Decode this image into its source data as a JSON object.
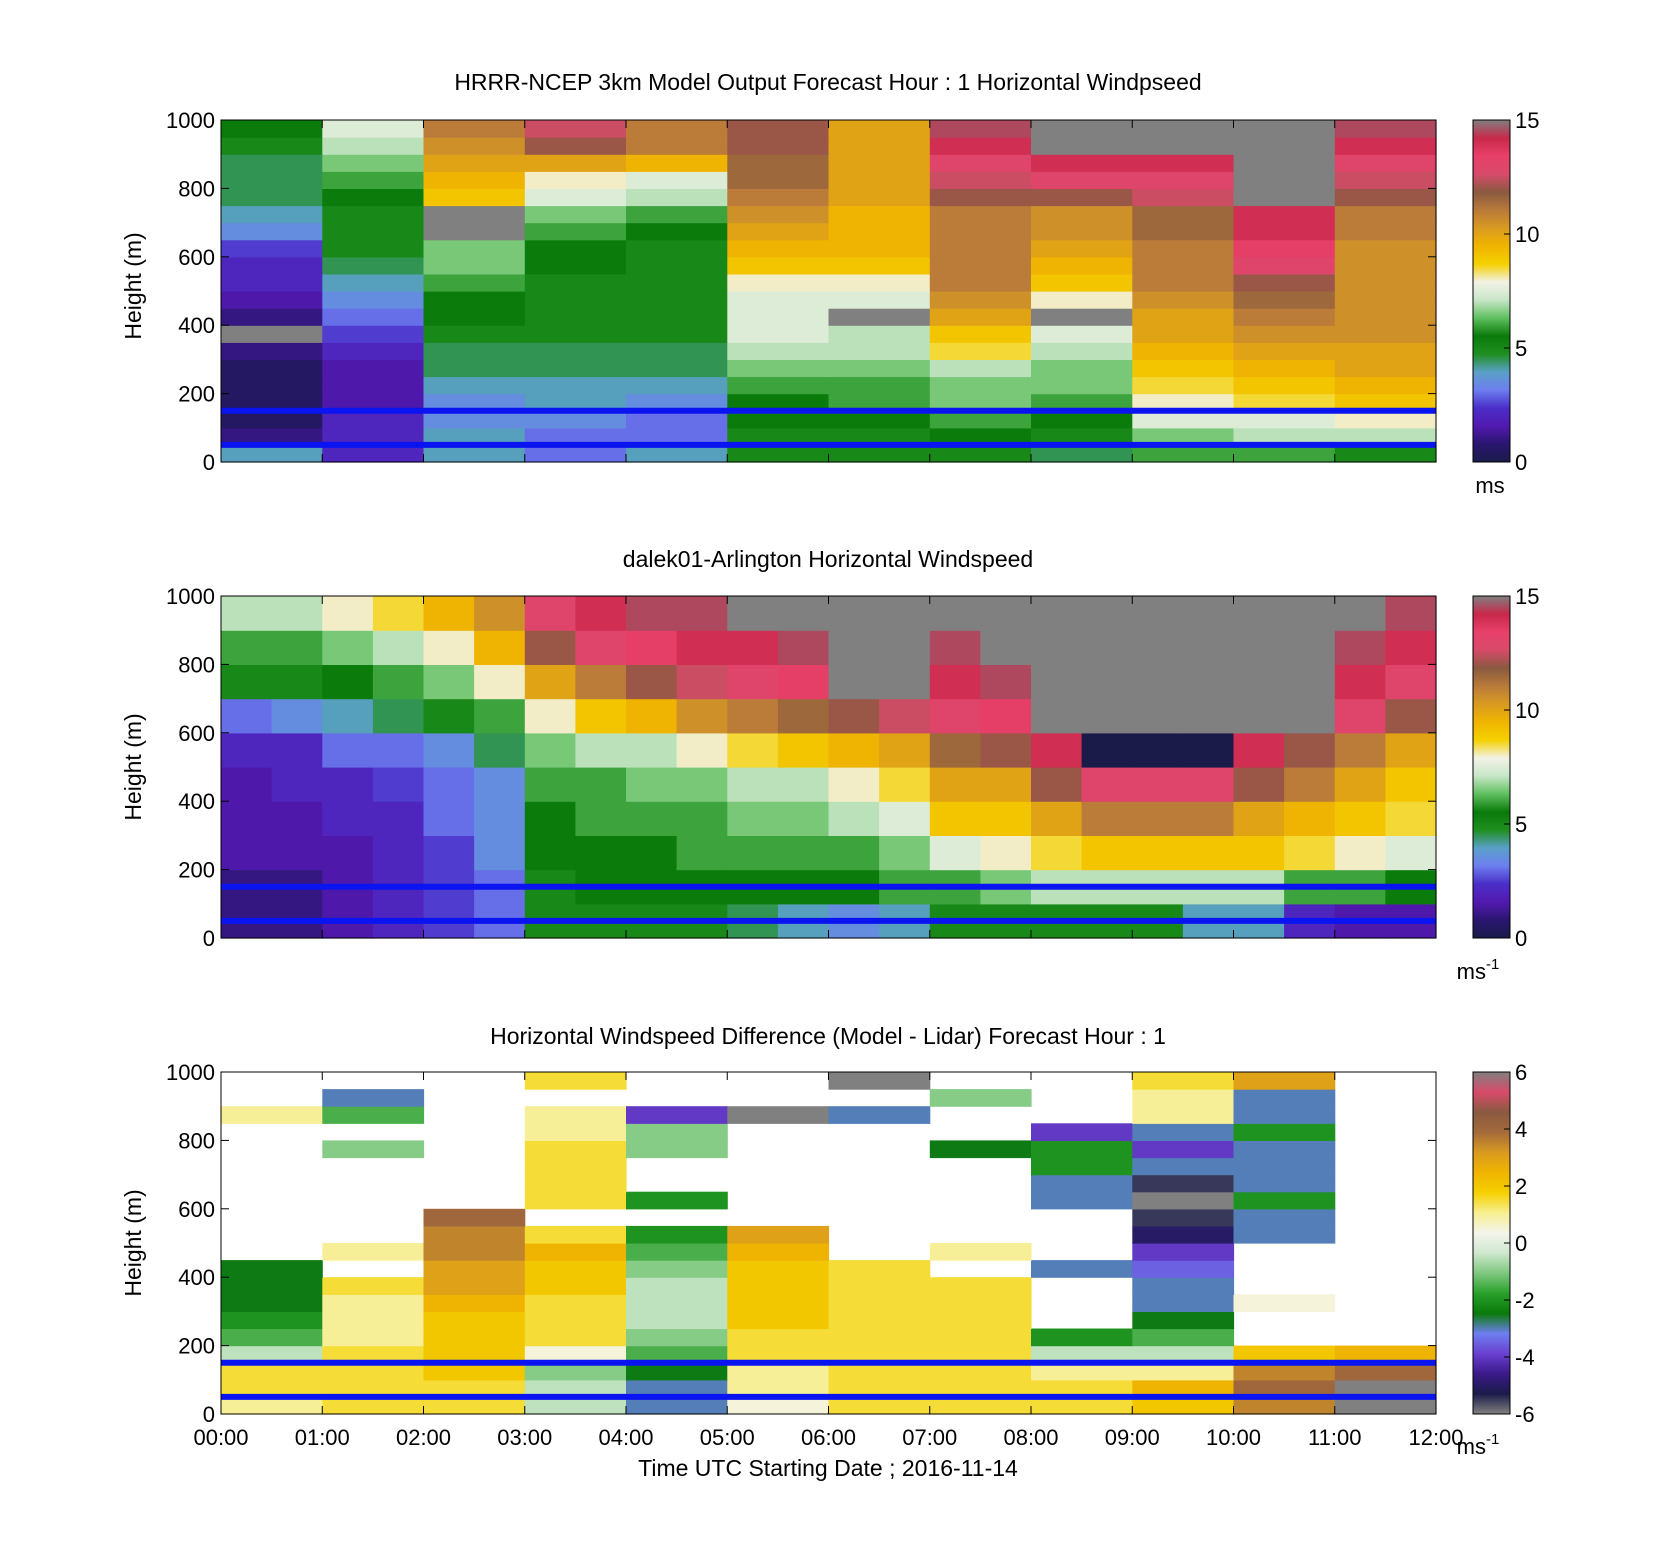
{
  "colormaps": {
    "speed": [
      "#1b1b4a",
      "#2a1670",
      "#5219b0",
      "#4a2fc8",
      "#6d7ff0",
      "#5aa0c8",
      "#1f8f1f",
      "#0a7a0a",
      "#5fbf5f",
      "#c8e6c8",
      "#f2f2e6",
      "#f5d000",
      "#f0b400",
      "#d89a20",
      "#b87a3a",
      "#8a5a40",
      "#d84a6a",
      "#e8406a",
      "#c8284a",
      "#808080"
    ],
    "diff": [
      "#808080",
      "#1b1b4a",
      "#3a1a8a",
      "#6a3fd0",
      "#6d7ff0",
      "#0a7a0a",
      "#2aa02a",
      "#7fc87f",
      "#cfe8cf",
      "#f4f4ec",
      "#f7ef90",
      "#f5d000",
      "#f0b400",
      "#d89a20",
      "#a46a3c",
      "#8a5a40",
      "#d84a6a",
      "#808080"
    ]
  },
  "charts": [
    {
      "title": "HRRR-NCEP 3km Model Output   Forecast Hour : 1 Horizontal Windpseed",
      "ylabel": "Height (m)",
      "colorbar_unit": "ms",
      "colorbar_unit_sup": "",
      "colorbar_ticks": [
        "15",
        "10",
        "5",
        "0"
      ],
      "y_ticks": [
        "1000",
        "800",
        "600",
        "400",
        "200",
        "0"
      ],
      "show_x_labels": false
    },
    {
      "title": "dalek01-Arlington  Horizontal Windspeed",
      "ylabel": "Height (m)",
      "colorbar_unit": "ms",
      "colorbar_unit_sup": "-1",
      "colorbar_ticks": [
        "15",
        "10",
        "5",
        "0"
      ],
      "y_ticks": [
        "1000",
        "800",
        "600",
        "400",
        "200",
        "0"
      ],
      "show_x_labels": false
    },
    {
      "title": "Horizontal Windspeed Difference (Model - Lidar) Forecast Hour : 1",
      "ylabel": "Height (m)",
      "colorbar_unit": "ms",
      "colorbar_unit_sup": "-1",
      "colorbar_ticks": [
        "6",
        "4",
        "2",
        "0",
        "-2",
        "-4",
        "-6"
      ],
      "y_ticks": [
        "1000",
        "800",
        "600",
        "400",
        "200",
        "0"
      ],
      "show_x_labels": true
    }
  ],
  "x_ticks": [
    "00:00",
    "01:00",
    "02:00",
    "03:00",
    "04:00",
    "05:00",
    "06:00",
    "07:00",
    "08:00",
    "09:00",
    "10:00",
    "11:00",
    "12:00"
  ],
  "xlabel": "Time UTC  Starting Date ; 2016-11-14",
  "chart_data": [
    {
      "type": "heatmap",
      "title": "HRRR-NCEP 3km Model Output   Forecast Hour : 1 Horizontal Windpseed",
      "ylabel": "Height (m)",
      "ylim": [
        0,
        1000
      ],
      "xlim": [
        "00:00",
        "12:00"
      ],
      "colorbar_range": [
        0,
        15
      ],
      "colorbar_label": "ms",
      "horizontal_lines_height_m": [
        150,
        50
      ],
      "x_hours": [
        0.5,
        1.5,
        2.5,
        3.5,
        4.5,
        5.5,
        6.5,
        7.5,
        8.5,
        9.5,
        10.5,
        11.5
      ],
      "heights_m": [
        0,
        50,
        100,
        150,
        200,
        250,
        300,
        350,
        400,
        450,
        500,
        550,
        600,
        650,
        700,
        750,
        800,
        850,
        900,
        950,
        1000
      ],
      "z": [
        [
          4,
          2,
          4,
          3,
          4,
          5,
          5,
          5,
          4.5,
          6,
          6,
          5
        ],
        [
          1,
          2,
          4,
          3,
          3,
          5,
          5,
          5.5,
          5,
          6.5,
          7,
          7
        ],
        [
          0.5,
          2,
          3.5,
          3.5,
          3,
          5.5,
          5.5,
          6,
          5.5,
          7.5,
          7.5,
          8
        ],
        [
          0.5,
          1.5,
          3.5,
          4,
          3.5,
          5.5,
          6,
          6.5,
          6,
          8,
          8.5,
          9
        ],
        [
          0.5,
          1.5,
          4,
          4,
          4,
          6,
          6,
          6.5,
          6.5,
          8.5,
          9,
          9.5
        ],
        [
          0.5,
          1.5,
          4.5,
          4.5,
          4.5,
          6.5,
          6.5,
          7,
          6.5,
          9,
          9.5,
          10
        ],
        [
          1,
          2,
          4.5,
          4.5,
          4.5,
          7,
          7,
          8.5,
          7,
          9.5,
          10,
          10
        ],
        [
          0,
          2.5,
          5,
          5,
          5,
          7.5,
          7,
          9,
          7.5,
          10,
          10.5,
          10.5
        ],
        [
          1,
          3,
          5.5,
          5,
          5,
          7.5,
          0,
          10,
          0,
          10,
          11,
          10.5
        ],
        [
          1.5,
          3.5,
          5.5,
          5,
          5,
          7.5,
          7.5,
          10.5,
          8,
          10.5,
          11.5,
          10.5
        ],
        [
          2,
          4,
          6,
          5,
          5,
          8,
          8,
          11,
          9,
          11,
          12,
          10.5
        ],
        [
          2,
          4.5,
          6.5,
          5.5,
          5,
          9,
          9,
          11,
          9.5,
          11,
          13,
          10.5
        ],
        [
          2.5,
          5,
          6.5,
          5.5,
          5,
          9.5,
          9.5,
          11,
          10,
          11,
          13.5,
          10.5
        ],
        [
          3.5,
          5,
          0,
          6,
          5.5,
          10,
          9.5,
          11,
          10.5,
          11.5,
          14,
          11
        ],
        [
          4,
          5,
          0,
          6.5,
          6,
          10.5,
          9.5,
          11,
          10.5,
          11.5,
          14,
          11
        ],
        [
          4.5,
          5.5,
          9,
          7.5,
          7,
          11,
          10,
          12,
          12,
          12.5,
          0,
          12
        ],
        [
          4.5,
          6,
          9.5,
          8,
          7.5,
          11.5,
          10,
          12.5,
          13,
          13,
          0,
          12.5
        ],
        [
          4.5,
          6.5,
          10,
          10,
          9.5,
          11.5,
          10,
          13,
          14,
          14,
          0,
          13
        ],
        [
          5,
          7,
          10.5,
          12,
          11,
          12,
          10,
          14,
          0,
          0,
          0,
          14
        ],
        [
          5.5,
          7.5,
          11,
          12.5,
          11,
          12,
          10,
          14.5,
          0,
          0,
          0,
          14.5
        ]
      ]
    },
    {
      "type": "heatmap",
      "title": "dalek01-Arlington  Horizontal Windspeed",
      "ylabel": "Height (m)",
      "ylim": [
        0,
        1000
      ],
      "xlim": [
        "00:00",
        "12:00"
      ],
      "colorbar_range": [
        0,
        15
      ],
      "colorbar_label": "ms-1",
      "horizontal_lines_height_m": [
        150,
        50
      ],
      "x_hours": [
        0.25,
        0.75,
        1.25,
        1.75,
        2.25,
        2.75,
        3.25,
        3.75,
        4.25,
        4.75,
        5.25,
        5.75,
        6.25,
        6.75,
        7.25,
        7.75,
        8.25,
        8.75,
        9.25,
        9.75,
        10.25,
        10.75,
        11.25,
        11.75
      ],
      "heights_m": [
        0,
        100,
        200,
        300,
        400,
        500,
        600,
        700,
        800,
        900,
        1000
      ],
      "z": [
        [
          1,
          1,
          1.5,
          2,
          2.5,
          3,
          5,
          5,
          5,
          5,
          4.5,
          4,
          3.5,
          4,
          5,
          5,
          5,
          5,
          5,
          4,
          4,
          2,
          1.5,
          1.5
        ],
        [
          1,
          1,
          1.5,
          2,
          2.5,
          3,
          5,
          5.5,
          5.5,
          5.5,
          5.5,
          5.5,
          5.5,
          6,
          6,
          6.5,
          7,
          7,
          7,
          7,
          7,
          6,
          6,
          5.5
        ],
        [
          1.5,
          1.5,
          1.5,
          2,
          2.5,
          3.5,
          5.5,
          5.5,
          5.5,
          6,
          6,
          6,
          6,
          6.5,
          7.5,
          8,
          8.5,
          9,
          9,
          9,
          9,
          8.5,
          8,
          7.5
        ],
        [
          1.5,
          1.5,
          2,
          2,
          3,
          3.5,
          5.5,
          6,
          6,
          6,
          6.5,
          6.5,
          7,
          7.5,
          9,
          9,
          10,
          11,
          11,
          11,
          10,
          9.5,
          9,
          8.5
        ],
        [
          1.5,
          2,
          2,
          2.5,
          3,
          3.5,
          6,
          6,
          6.5,
          6.5,
          7,
          7,
          8,
          8.5,
          10,
          10,
          12,
          13,
          13,
          13,
          12,
          11,
          10,
          9
        ],
        [
          2,
          2,
          3,
          3,
          3.5,
          4.5,
          6.5,
          7,
          7,
          8,
          8.5,
          9,
          9.5,
          10,
          11.5,
          12,
          14,
          0,
          0,
          0,
          14,
          12,
          11,
          10
        ],
        [
          3,
          3.5,
          4,
          4.5,
          5,
          6,
          8,
          9,
          9.5,
          10.5,
          11,
          11.5,
          12,
          12.5,
          13,
          13.5,
          0,
          0,
          0,
          0,
          0,
          0,
          13,
          12
        ],
        [
          5,
          5,
          5.5,
          6,
          6.5,
          8,
          10,
          11,
          12,
          12.5,
          13,
          13.5,
          0,
          0,
          14,
          14.5,
          0,
          0,
          0,
          0,
          0,
          0,
          14,
          13
        ],
        [
          6,
          6,
          6.5,
          7,
          8,
          9.5,
          12,
          13,
          13.5,
          14,
          14,
          14.5,
          0,
          0,
          14.5,
          15,
          0,
          15,
          15,
          0,
          0,
          0,
          14.5,
          14
        ],
        [
          7,
          7,
          8,
          8.5,
          9.5,
          10.5,
          13,
          14,
          14.5,
          14.5,
          15,
          15,
          0,
          0,
          15,
          15,
          0,
          15,
          15,
          0,
          0,
          0,
          15,
          14.5
        ]
      ]
    },
    {
      "type": "heatmap",
      "title": "Horizontal Windspeed Difference (Model - Lidar) Forecast Hour : 1",
      "xlabel": "Time UTC  Starting Date ; 2016-11-14",
      "ylabel": "Height (m)",
      "ylim": [
        0,
        1000
      ],
      "xlim": [
        "00:00",
        "12:00"
      ],
      "colorbar_range": [
        -6,
        6
      ],
      "colorbar_label": "ms-1",
      "horizontal_lines_height_m": [
        150,
        50
      ],
      "x_hours": [
        0.5,
        1.5,
        2.5,
        3.5,
        4.5,
        5.5,
        6.5,
        7.5,
        8.5,
        9.5,
        10.5,
        11.5
      ],
      "heights_m": [
        0,
        50,
        100,
        150,
        200,
        250,
        300,
        350,
        400,
        450,
        500,
        550,
        600,
        650,
        700,
        750,
        800,
        850,
        900,
        950,
        1000
      ],
      "z": [
        [
          1,
          1.5,
          1.5,
          -0.5,
          -3,
          0.5,
          1.5,
          1.5,
          1.5,
          2,
          3.5,
          -6
        ],
        [
          1.5,
          1.5,
          1.5,
          -0.5,
          -3,
          1,
          1.5,
          1.5,
          1.5,
          2.5,
          4,
          -6
        ],
        [
          1.5,
          1.5,
          2,
          -1,
          -2.5,
          1,
          1.5,
          1.5,
          1,
          1,
          3.5,
          4
        ],
        [
          -0.5,
          1.5,
          2,
          0.5,
          -1.5,
          1.5,
          1.5,
          1.5,
          -0.5,
          -0.5,
          2,
          2.5
        ],
        [
          -1.5,
          1,
          2,
          1.5,
          -1,
          1.5,
          1.5,
          1.5,
          -2,
          -1.5,
          null,
          null
        ],
        [
          -2,
          1,
          2,
          1.5,
          -0.5,
          2,
          1.5,
          1.5,
          null,
          -2.5,
          null,
          null
        ],
        [
          -2.5,
          1,
          2.5,
          1.5,
          -0.5,
          2,
          1.5,
          1.5,
          null,
          -3,
          0.5,
          null
        ],
        [
          -2.5,
          1.5,
          3,
          2,
          -0.5,
          2,
          1.5,
          1.5,
          null,
          -3,
          null,
          null
        ],
        [
          -2.5,
          null,
          3,
          2,
          -1,
          2,
          1.5,
          null,
          -3,
          -3.5,
          null,
          null
        ],
        [
          null,
          1,
          3.5,
          2.5,
          -1.5,
          2.5,
          null,
          1,
          null,
          -4,
          null,
          null
        ],
        [
          null,
          null,
          3.5,
          1.5,
          -2,
          3,
          null,
          null,
          null,
          -5,
          -3,
          null
        ],
        [
          null,
          null,
          4,
          null,
          null,
          null,
          null,
          null,
          null,
          -5.5,
          -3,
          null
        ],
        [
          null,
          null,
          null,
          1.5,
          -2,
          null,
          null,
          null,
          -3,
          -6,
          -2,
          null
        ],
        [
          null,
          null,
          null,
          1.5,
          null,
          null,
          null,
          null,
          -3,
          -5.5,
          -3,
          null
        ],
        [
          null,
          null,
          null,
          1.5,
          null,
          null,
          null,
          null,
          -2,
          -3,
          -3,
          null
        ],
        [
          null,
          -1,
          null,
          1.5,
          -1,
          null,
          null,
          -2.5,
          -2,
          -4,
          -3,
          null
        ],
        [
          null,
          null,
          null,
          1,
          -1,
          null,
          null,
          null,
          -4,
          -3,
          -2,
          null
        ],
        [
          1,
          -1.5,
          null,
          1,
          -4,
          -6,
          -3,
          null,
          null,
          1,
          -3,
          null
        ],
        [
          null,
          -3,
          null,
          null,
          null,
          null,
          null,
          -1,
          null,
          1,
          -3,
          null
        ],
        [
          null,
          null,
          null,
          1.5,
          null,
          null,
          -6,
          null,
          null,
          1.5,
          3,
          null
        ]
      ]
    }
  ]
}
